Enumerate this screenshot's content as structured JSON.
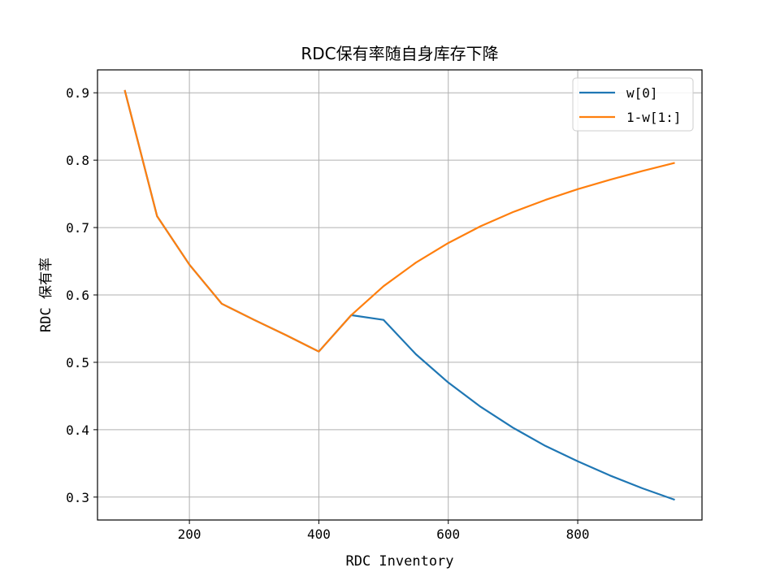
{
  "chart_data": {
    "type": "line",
    "title": "RDC保有率随自身库存下降",
    "xlabel": "RDC Inventory",
    "ylabel": "RDC 保有率",
    "xlim": [
      58,
      992
    ],
    "ylim": [
      0.266,
      0.934
    ],
    "xticks": [
      200,
      400,
      600,
      800
    ],
    "yticks": [
      0.3,
      0.4,
      0.5,
      0.6,
      0.7,
      0.8,
      0.9
    ],
    "xtick_labels": [
      "200",
      "400",
      "600",
      "800"
    ],
    "ytick_labels": [
      "0.3",
      "0.4",
      "0.5",
      "0.6",
      "0.7",
      "0.8",
      "0.9"
    ],
    "grid": true,
    "legend_position": "top-right",
    "series": [
      {
        "name": "w[0]",
        "color": "#1f77b4",
        "x": [
          100,
          150,
          200,
          250,
          300,
          350,
          400,
          450,
          500,
          550,
          600,
          650,
          700,
          750,
          800,
          850,
          900,
          950
        ],
        "y": [
          0.904,
          0.717,
          0.645,
          0.587,
          0.563,
          0.54,
          0.516,
          0.57,
          0.563,
          0.512,
          0.47,
          0.434,
          0.403,
          0.376,
          0.353,
          0.332,
          0.313,
          0.296
        ]
      },
      {
        "name": "1-w[1:]",
        "color": "#ff7f0e",
        "x": [
          100,
          150,
          200,
          250,
          300,
          350,
          400,
          450,
          500,
          550,
          600,
          650,
          700,
          750,
          800,
          850,
          900,
          950
        ],
        "y": [
          0.904,
          0.717,
          0.645,
          0.587,
          0.563,
          0.54,
          0.516,
          0.57,
          0.613,
          0.648,
          0.677,
          0.702,
          0.723,
          0.741,
          0.757,
          0.771,
          0.784,
          0.796
        ]
      }
    ]
  }
}
